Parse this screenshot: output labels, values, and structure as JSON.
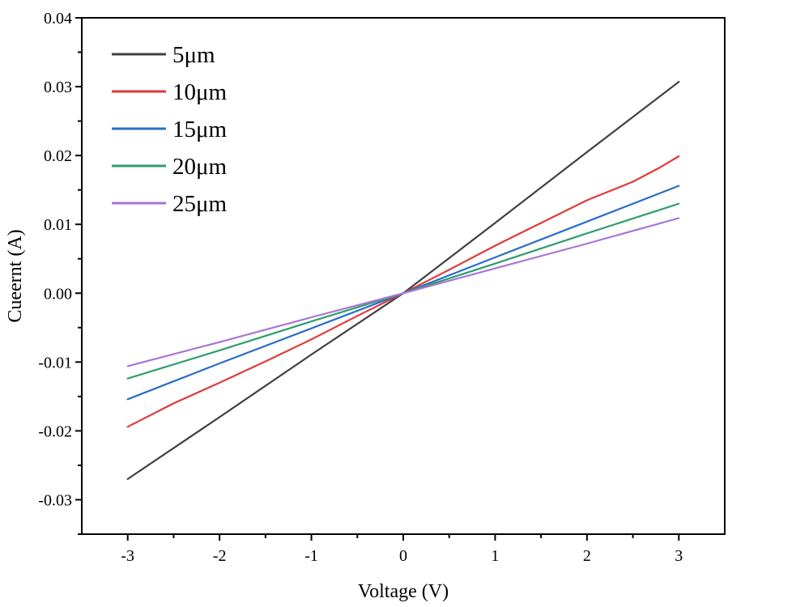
{
  "chart_data": {
    "type": "line",
    "title": "",
    "xlabel": "Voltage (V)",
    "ylabel": "Cueernt (A)",
    "xlim": [
      -3.5,
      3.5
    ],
    "ylim": [
      -0.035,
      0.04
    ],
    "x_ticks": [
      -3,
      -2,
      -1,
      0,
      1,
      2,
      3
    ],
    "x_tick_labels": [
      "-3",
      "-2",
      "-1",
      "0",
      "1",
      "2",
      "3"
    ],
    "y_ticks": [
      -0.03,
      -0.02,
      -0.01,
      0.0,
      0.01,
      0.02,
      0.03,
      0.04
    ],
    "y_tick_labels": [
      "-0.03",
      "-0.02",
      "-0.01",
      "0.00",
      "0.01",
      "0.02",
      "0.03",
      "0.04"
    ],
    "grid": false,
    "legend_position": "top-left",
    "series": [
      {
        "name": "5μm",
        "color": "#404040",
        "x": [
          -3,
          -2,
          -1,
          0,
          1,
          2,
          3
        ],
        "y": [
          -0.027,
          -0.018,
          -0.0089,
          0.0,
          0.0102,
          0.0205,
          0.0307
        ]
      },
      {
        "name": "10μm",
        "color": "#e03a3a",
        "x": [
          -3,
          -2.5,
          -2,
          -1.5,
          -1,
          -0.5,
          0,
          0.5,
          1,
          1.5,
          2,
          2.5,
          2.8,
          3
        ],
        "y": [
          -0.0194,
          -0.016,
          -0.013,
          -0.0099,
          -0.0067,
          -0.0033,
          0.0,
          0.0034,
          0.0069,
          0.0102,
          0.0135,
          0.0162,
          0.0183,
          0.0199
        ]
      },
      {
        "name": "15μm",
        "color": "#2a6dc7",
        "x": [
          -3,
          -2,
          -1,
          0,
          1,
          2,
          3
        ],
        "y": [
          -0.0154,
          -0.0102,
          -0.0051,
          0.0,
          0.0052,
          0.0104,
          0.0156
        ]
      },
      {
        "name": "20μm",
        "color": "#2e9e6b",
        "x": [
          -3,
          -2,
          -1,
          0,
          1,
          2,
          3
        ],
        "y": [
          -0.0124,
          -0.0083,
          -0.0041,
          0.0,
          0.0043,
          0.0087,
          0.013
        ]
      },
      {
        "name": "25μm",
        "color": "#a776d6",
        "x": [
          -3,
          -2,
          -1,
          0,
          1,
          2,
          3
        ],
        "y": [
          -0.0106,
          -0.0071,
          -0.0035,
          0.0,
          0.0036,
          0.0072,
          0.0109
        ]
      }
    ]
  }
}
